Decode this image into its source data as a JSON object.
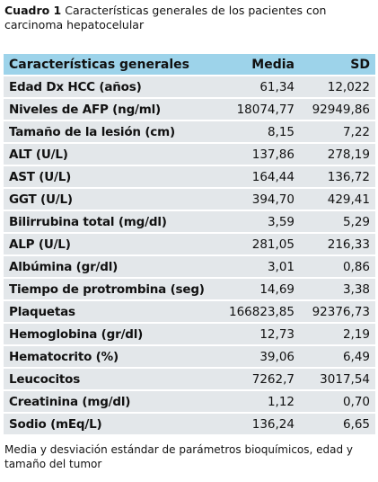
{
  "caption": {
    "label": "Cuadro 1",
    "text": "Características generales de los pacientes con carcinoma hepatocelular"
  },
  "table": {
    "header": [
      "Características generales",
      "Media",
      "SD"
    ],
    "rows": [
      [
        "Edad Dx HCC (años)",
        "61,34",
        "12,022"
      ],
      [
        "Niveles de AFP (ng/ml)",
        "18074,77",
        "92949,86"
      ],
      [
        "Tamaño de la lesión (cm)",
        "8,15",
        "7,22"
      ],
      [
        "ALT (U/L)",
        "137,86",
        "278,19"
      ],
      [
        "AST (U/L)",
        "164,44",
        "136,72"
      ],
      [
        "GGT (U/L)",
        "394,70",
        "429,41"
      ],
      [
        "Bilirrubina total (mg/dl)",
        "3,59",
        "5,29"
      ],
      [
        "ALP (U/L)",
        "281,05",
        "216,33"
      ],
      [
        "Albúmina (gr/dl)",
        "3,01",
        "0,86"
      ],
      [
        "Tiempo de protrombina (seg)",
        "14,69",
        "3,38"
      ],
      [
        "Plaquetas",
        "166823,85",
        "92376,73"
      ],
      [
        "Hemoglobina (gr/dl)",
        "12,73",
        "2,19"
      ],
      [
        "Hematocrito (%)",
        "39,06",
        "6,49"
      ],
      [
        "Leucocitos",
        "7262,7",
        "3017,54"
      ],
      [
        "Creatinina (mg/dl)",
        "1,12",
        "0,70"
      ],
      [
        "Sodio (mEq/L)",
        "136,24",
        "6,65"
      ]
    ]
  },
  "footnote": "Media y desviación estándar de parámetros bioquímicos, edad y tamaño del tumor"
}
